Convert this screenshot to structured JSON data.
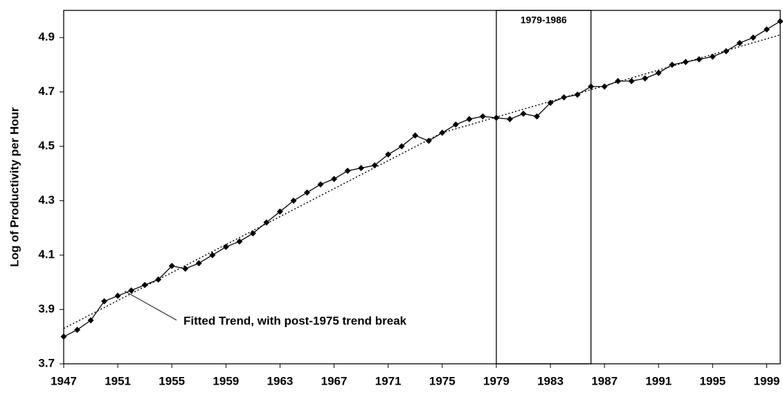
{
  "chart_data": {
    "type": "line",
    "y_label": "Log of Productivity per Hour",
    "x": [
      1947,
      1948,
      1949,
      1950,
      1951,
      1952,
      1953,
      1954,
      1955,
      1956,
      1957,
      1958,
      1959,
      1960,
      1961,
      1962,
      1963,
      1964,
      1965,
      1966,
      1967,
      1968,
      1969,
      1970,
      1971,
      1972,
      1973,
      1974,
      1975,
      1976,
      1977,
      1978,
      1979,
      1980,
      1981,
      1982,
      1983,
      1984,
      1985,
      1986,
      1987,
      1988,
      1989,
      1990,
      1991,
      1992,
      1993,
      1994,
      1995,
      1996,
      1997,
      1998,
      1999,
      2000
    ],
    "series": [
      {
        "color": "#000000",
        "values": [
          3.8,
          3.825,
          3.86,
          3.93,
          3.95,
          3.97,
          3.99,
          4.01,
          4.06,
          4.05,
          4.07,
          4.1,
          4.13,
          4.15,
          4.18,
          4.22,
          4.26,
          4.3,
          4.33,
          4.36,
          4.38,
          4.41,
          4.42,
          4.43,
          4.47,
          4.5,
          4.54,
          4.52,
          4.55,
          4.58,
          4.6,
          4.61,
          4.605,
          4.6,
          4.62,
          4.61,
          4.66,
          4.68,
          4.69,
          4.72,
          4.72,
          4.74,
          4.74,
          4.75,
          4.77,
          4.8,
          4.81,
          4.82,
          4.83,
          4.85,
          4.88,
          4.9,
          4.93,
          4.96
        ]
      }
    ],
    "trend": {
      "color": "#000000",
      "x": [
        1947,
        1975,
        2000
      ],
      "values": [
        3.83,
        4.55,
        4.91
      ]
    },
    "period": {
      "start": 1979,
      "end": 1986,
      "label": "1979-1986"
    },
    "annotation": "Fitted Trend, with post-1975 trend break",
    "xlim": [
      1947,
      2000
    ],
    "xticks": [
      1947,
      1951,
      1955,
      1959,
      1963,
      1967,
      1971,
      1975,
      1979,
      1983,
      1987,
      1991,
      1995,
      1999
    ],
    "ylim": [
      3.7,
      5.0
    ],
    "yticks": [
      3.7,
      3.9,
      4.1,
      4.3,
      4.5,
      4.7,
      4.9
    ],
    "grid": false
  }
}
